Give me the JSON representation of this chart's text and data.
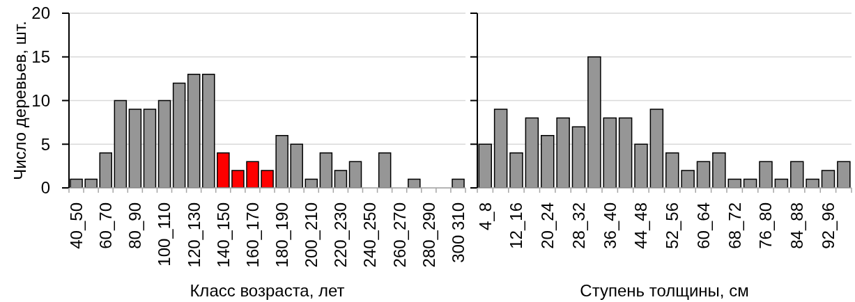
{
  "chart_data": [
    {
      "type": "bar",
      "xlabel": "Класс возраста, лет",
      "ylabel": "Число деревьев, шт.",
      "categories": [
        "40_50",
        null,
        "60_70",
        null,
        "80_90",
        null,
        "100_110",
        null,
        "120_130",
        null,
        "140_150",
        null,
        "160_170",
        null,
        "180_190",
        null,
        "200_210",
        null,
        "220_230",
        null,
        "240_250",
        null,
        "260_270",
        null,
        "280_290",
        null,
        "300 310"
      ],
      "values": [
        1,
        1,
        4,
        10,
        9,
        9,
        10,
        12,
        13,
        13,
        4,
        2,
        3,
        2,
        6,
        5,
        1,
        4,
        2,
        3,
        0,
        4,
        0,
        1,
        0,
        0,
        1
      ],
      "colors": [
        "#969696",
        "#969696",
        "#969696",
        "#969696",
        "#969696",
        "#969696",
        "#969696",
        "#969696",
        "#969696",
        "#969696",
        "#ff0000",
        "#ff0000",
        "#ff0000",
        "#ff0000",
        "#969696",
        "#969696",
        "#969696",
        "#969696",
        "#969696",
        "#969696",
        "#969696",
        "#969696",
        "#969696",
        "#969696",
        "#969696",
        "#969696",
        "#969696"
      ],
      "ylim": [
        0,
        20
      ],
      "yticks": [
        0,
        5,
        10,
        15,
        20
      ],
      "grid": "y"
    },
    {
      "type": "bar",
      "xlabel": "Ступень толщины, см",
      "categories": [
        "4_8",
        null,
        "12_16",
        null,
        "20_24",
        null,
        "28_32",
        null,
        "36_40",
        null,
        "44_48",
        null,
        "52_56",
        null,
        "60_64",
        null,
        "68_72",
        null,
        "76_80",
        null,
        "84_88",
        null,
        "92_96",
        null
      ],
      "values": [
        5,
        9,
        4,
        8,
        6,
        8,
        7,
        15,
        8,
        8,
        5,
        9,
        4,
        2,
        3,
        4,
        1,
        1,
        3,
        1,
        3,
        1,
        2,
        3
      ],
      "color": "#969696",
      "ylim": [
        0,
        20
      ],
      "yticks": [
        0,
        5,
        10,
        15,
        20
      ],
      "grid": "y",
      "tick_labels": "x"
    }
  ]
}
